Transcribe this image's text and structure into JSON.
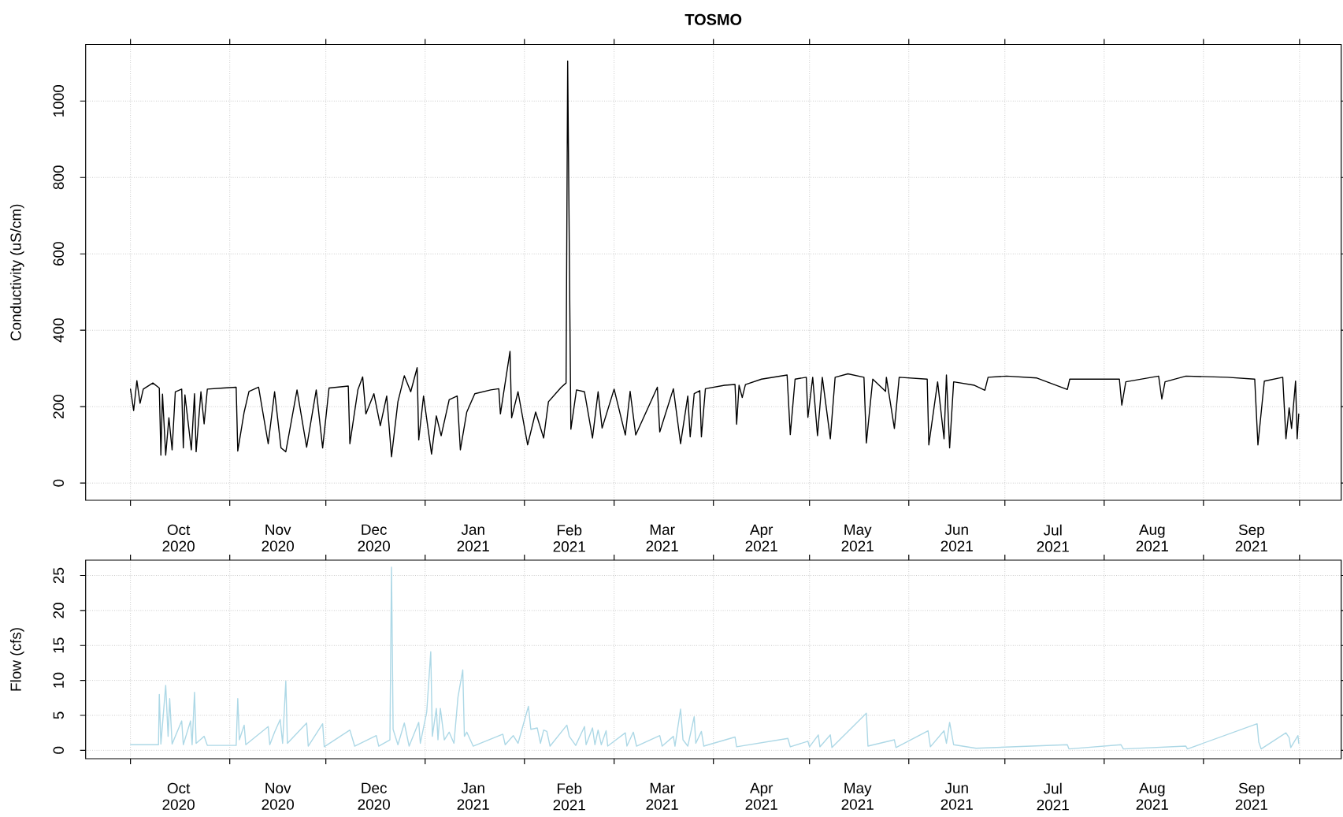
{
  "chart_data": [
    {
      "type": "line",
      "title": "TOSMO",
      "ylabel": "Conductivity (uS/cm)",
      "grid": true,
      "xlim": [
        "2020-09-17",
        "2021-10-14"
      ],
      "ylim": [
        -45,
        1148
      ],
      "yticks": [
        0,
        200,
        400,
        600,
        800,
        1000
      ],
      "xticks": [
        {
          "value": "2020-10-01",
          "label": null
        },
        {
          "value": "2020-11-01",
          "label": null
        },
        {
          "value": "2020-12-01",
          "label": null
        },
        {
          "value": "2021-01-01",
          "label": null
        },
        {
          "value": "2021-02-01",
          "label": null
        },
        {
          "value": "2021-03-01",
          "label": null
        },
        {
          "value": "2021-04-01",
          "label": null
        },
        {
          "value": "2021-05-01",
          "label": null
        },
        {
          "value": "2021-06-01",
          "label": null
        },
        {
          "value": "2021-07-01",
          "label": null
        },
        {
          "value": "2021-08-01",
          "label": null
        },
        {
          "value": "2021-09-01",
          "label": null
        },
        {
          "value": "2021-10-01",
          "label": null
        },
        {
          "value": "2020-10-16",
          "label": "Oct 2020"
        },
        {
          "value": "2020-11-16",
          "label": "Nov 2020"
        },
        {
          "value": "2020-12-16",
          "label": "Dec 2020"
        },
        {
          "value": "2021-01-16",
          "label": "Jan 2021"
        },
        {
          "value": "2021-02-15",
          "label": "Feb 2021"
        },
        {
          "value": "2021-03-16",
          "label": "Mar 2021"
        },
        {
          "value": "2021-04-16",
          "label": "Apr 2021"
        },
        {
          "value": "2021-05-16",
          "label": "May 2021"
        },
        {
          "value": "2021-06-16",
          "label": "Jun 2021"
        },
        {
          "value": "2021-07-16",
          "label": "Jul 2021"
        },
        {
          "value": "2021-08-16",
          "label": "Aug 2021"
        },
        {
          "value": "2021-09-16",
          "label": "Sep 2021"
        }
      ],
      "series": [
        {
          "color": "#000000",
          "x": [
            "2020-10-01",
            "2020-10-02",
            "2020-10-03",
            "2020-10-04",
            "2020-10-05",
            "2020-10-08",
            "2020-10-10",
            "2020-10-10T12:00",
            "2020-10-11",
            "2020-10-12",
            "2020-10-13",
            "2020-10-14",
            "2020-10-15",
            "2020-10-17",
            "2020-10-17T12:00",
            "2020-10-18",
            "2020-10-20",
            "2020-10-21",
            "2020-10-21T12:00",
            "2020-10-23",
            "2020-10-24",
            "2020-10-25",
            "2020-10-30",
            "2020-11-03",
            "2020-11-03T12:00",
            "2020-11-05T12:00",
            "2020-11-07",
            "2020-11-10",
            "2020-11-13",
            "2020-11-15",
            "2020-11-17",
            "2020-11-18T12:00",
            "2020-11-22",
            "2020-11-25",
            "2020-11-28",
            "2020-11-30",
            "2020-12-02",
            "2020-12-08",
            "2020-12-08T12:00",
            "2020-12-11",
            "2020-12-12T12:00",
            "2020-12-13T12:00",
            "2020-12-16",
            "2020-12-18",
            "2020-12-20",
            "2020-12-21T12:00",
            "2020-12-23T12:00",
            "2020-12-25T12:00",
            "2020-12-27T12:00",
            "2020-12-29T12:00",
            "2020-12-30",
            "2020-12-31T12:00",
            "2021-01-03",
            "2021-01-04T12:00",
            "2021-01-06",
            "2021-01-08T12:00",
            "2021-01-11",
            "2021-01-12",
            "2021-01-14",
            "2021-01-16T12:00",
            "2021-01-21T12:00",
            "2021-01-24",
            "2021-01-24T12:00",
            "2021-01-27T12:00",
            "2021-01-28",
            "2021-01-30",
            "2021-02-02",
            "2021-02-04T12:00",
            "2021-02-07",
            "2021-02-08T12:00",
            "2021-02-12T12:00",
            "2021-02-14",
            "2021-02-14T12:00",
            "2021-02-15T12:00",
            "2021-02-17T06:00",
            "2021-02-19T18:00",
            "2021-02-22T06:00",
            "2021-02-24",
            "2021-02-25T06:00",
            "2021-03-01",
            "2021-03-04T12:00",
            "2021-03-06",
            "2021-03-07T18:00",
            "2021-03-14T12:00",
            "2021-03-15T06:00",
            "2021-03-19T12:00",
            "2021-03-21T18:00",
            "2021-03-24",
            "2021-03-24T18:00",
            "2021-03-26",
            "2021-03-27T18:00",
            "2021-03-28T06:00",
            "2021-03-29T12:00",
            "2021-04-04T12:00",
            "2021-04-07T18:00",
            "2021-04-08T06:00",
            "2021-04-09",
            "2021-04-10",
            "2021-04-11",
            "2021-04-16",
            "2021-04-24",
            "2021-04-25",
            "2021-04-26T12:00",
            "2021-04-30",
            "2021-04-30T12:00",
            "2021-05-02",
            "2021-05-03T12:00",
            "2021-05-05",
            "2021-05-07T12:00",
            "2021-05-09",
            "2021-05-13",
            "2021-05-18",
            "2021-05-18T18:00",
            "2021-05-20T18:00",
            "2021-05-24T18:00",
            "2021-05-25",
            "2021-05-27T12:00",
            "2021-05-29",
            "2021-06-06T18:00",
            "2021-06-07T06:00",
            "2021-06-10",
            "2021-06-12",
            "2021-06-12T18:00",
            "2021-06-13T18:00",
            "2021-06-15",
            "2021-06-21T12:00",
            "2021-06-24T18:00",
            "2021-06-25T18:00",
            "2021-07-01T12:00",
            "2021-07-11",
            "2021-07-20T12:00",
            "2021-07-21T06:00",
            "2021-08-05T18:00",
            "2021-08-06T12:00",
            "2021-08-07T18:00",
            "2021-08-18",
            "2021-08-19",
            "2021-08-20",
            "2021-08-26T12:00",
            "2021-09-08T12:00",
            "2021-09-17",
            "2021-09-18",
            "2021-09-20",
            "2021-09-25T18:00",
            "2021-09-26T18:00",
            "2021-09-27T18:00",
            "2021-09-28T12:00",
            "2021-09-29T18:00",
            "2021-09-30T06:00",
            "2021-09-30T18:00"
          ],
          "values": [
            246,
            190,
            268,
            209,
            246,
            262,
            249,
            73,
            233,
            73,
            171,
            87,
            239,
            246,
            92,
            231,
            87,
            234,
            82,
            239,
            155,
            246,
            249,
            251,
            84,
            186,
            240,
            251,
            103,
            239,
            92,
            82,
            244,
            94,
            244,
            92,
            249,
            254,
            103,
            244,
            278,
            181,
            234,
            150,
            228,
            69,
            213,
            281,
            239,
            302,
            113,
            228,
            76,
            176,
            124,
            218,
            228,
            87,
            186,
            234,
            244,
            247,
            181,
            345,
            171,
            239,
            100,
            186,
            118,
            213,
            251,
            262,
            1105,
            141,
            244,
            239,
            118,
            239,
            144,
            246,
            126,
            240,
            126,
            251,
            134,
            247,
            103,
            228,
            121,
            234,
            242,
            121,
            247,
            256,
            258,
            154,
            256,
            224,
            258,
            272,
            283,
            127,
            272,
            277,
            172,
            277,
            124,
            277,
            116,
            277,
            286,
            277,
            105,
            272,
            240,
            277,
            143,
            277,
            272,
            100,
            265,
            116,
            283,
            92,
            265,
            256,
            243,
            277,
            280,
            275,
            245,
            272,
            272,
            204,
            265,
            280,
            220,
            265,
            280,
            277,
            272,
            100,
            267,
            277,
            116,
            197,
            143,
            267,
            116,
            181
          ]
        }
      ]
    },
    {
      "type": "line",
      "ylabel": "Flow (cfs)",
      "grid": true,
      "xlim": [
        "2020-09-17",
        "2021-10-14"
      ],
      "ylim": [
        -1.2,
        27.2
      ],
      "yticks": [
        0,
        5,
        10,
        15,
        20,
        25
      ],
      "xticks": [
        {
          "value": "2020-10-01",
          "label": null
        },
        {
          "value": "2020-11-01",
          "label": null
        },
        {
          "value": "2020-12-01",
          "label": null
        },
        {
          "value": "2021-01-01",
          "label": null
        },
        {
          "value": "2021-02-01",
          "label": null
        },
        {
          "value": "2021-03-01",
          "label": null
        },
        {
          "value": "2021-04-01",
          "label": null
        },
        {
          "value": "2021-05-01",
          "label": null
        },
        {
          "value": "2021-06-01",
          "label": null
        },
        {
          "value": "2021-07-01",
          "label": null
        },
        {
          "value": "2021-08-01",
          "label": null
        },
        {
          "value": "2021-09-01",
          "label": null
        },
        {
          "value": "2021-10-01",
          "label": null
        },
        {
          "value": "2020-10-16",
          "label": "Oct 2020"
        },
        {
          "value": "2020-11-16",
          "label": "Nov 2020"
        },
        {
          "value": "2020-12-16",
          "label": "Dec 2020"
        },
        {
          "value": "2021-01-16",
          "label": "Jan 2021"
        },
        {
          "value": "2021-02-15",
          "label": "Feb 2021"
        },
        {
          "value": "2021-03-16",
          "label": "Mar 2021"
        },
        {
          "value": "2021-04-16",
          "label": "Apr 2021"
        },
        {
          "value": "2021-05-16",
          "label": "May 2021"
        },
        {
          "value": "2021-06-16",
          "label": "Jun 2021"
        },
        {
          "value": "2021-07-16",
          "label": "Jul 2021"
        },
        {
          "value": "2021-08-16",
          "label": "Aug 2021"
        },
        {
          "value": "2021-09-16",
          "label": "Sep 2021"
        }
      ],
      "series": [
        {
          "color": "#add8e6",
          "x": [
            "2020-10-01",
            "2020-10-09T18:00",
            "2020-10-10",
            "2020-10-10T12:00",
            "2020-10-12",
            "2020-10-12T18:00",
            "2020-10-13T06:00",
            "2020-10-14",
            "2020-10-17",
            "2020-10-17T12:00",
            "2020-10-19T18:00",
            "2020-10-20T06:00",
            "2020-10-21",
            "2020-10-21T12:00",
            "2020-10-24",
            "2020-10-25",
            "2020-11-03",
            "2020-11-03T12:00",
            "2020-11-04",
            "2020-11-05T12:00",
            "2020-11-06",
            "2020-11-13",
            "2020-11-13T12:00",
            "2020-11-15",
            "2020-11-16T18:00",
            "2020-11-17T12:00",
            "2020-11-18T12:00",
            "2020-11-19",
            "2020-11-25",
            "2020-11-25T12:00",
            "2020-11-30",
            "2020-11-30T12:00",
            "2020-12-08T12:00",
            "2020-12-10",
            "2020-12-16T18:00",
            "2020-12-17T12:00",
            "2020-12-21",
            "2020-12-21T12:00",
            "2020-12-22",
            "2020-12-23T12:00",
            "2020-12-25T12:00",
            "2020-12-27",
            "2020-12-30",
            "2020-12-30T12:00",
            "2021-01-01T12:00",
            "2021-01-02T18:00",
            "2021-01-03T06:00",
            "2021-01-04T12:00",
            "2021-01-05",
            "2021-01-05T18:00",
            "2021-01-07",
            "2021-01-08T12:00",
            "2021-01-10",
            "2021-01-11T06:00",
            "2021-01-12T18:00",
            "2021-01-13T06:00",
            "2021-01-14",
            "2021-01-16",
            "2021-01-25T06:00",
            "2021-01-26",
            "2021-01-28T12:00",
            "2021-01-30",
            "2021-02-02T06:00",
            "2021-02-03",
            "2021-02-05",
            "2021-02-06",
            "2021-02-07",
            "2021-02-08",
            "2021-02-09",
            "2021-02-14T06:00",
            "2021-02-15",
            "2021-02-17",
            "2021-02-19T18:00",
            "2021-02-20T06:00",
            "2021-02-22T06:00",
            "2021-02-23",
            "2021-02-24",
            "2021-02-25",
            "2021-02-26T12:00",
            "2021-02-27",
            "2021-03-04T12:00",
            "2021-03-05",
            "2021-03-07",
            "2021-03-08",
            "2021-03-15T06:00",
            "2021-03-16",
            "2021-03-19T12:00",
            "2021-03-20",
            "2021-03-21T18:00",
            "2021-03-22T12:00",
            "2021-03-24",
            "2021-03-26",
            "2021-03-26T12:00",
            "2021-03-28T06:00",
            "2021-03-29",
            "2021-04-07T18:00",
            "2021-04-08T06:00",
            "2021-04-24T06:00",
            "2021-04-25",
            "2021-04-30T12:00",
            "2021-05-01",
            "2021-05-03T18:00",
            "2021-05-04T06:00",
            "2021-05-07T12:00",
            "2021-05-08",
            "2021-05-18T18:00",
            "2021-05-19T06:00",
            "2021-05-27T12:00",
            "2021-05-28",
            "2021-06-07",
            "2021-06-07T18:00",
            "2021-06-12",
            "2021-06-12T18:00",
            "2021-06-13T18:00",
            "2021-06-15",
            "2021-06-22",
            "2021-07-20T12:00",
            "2021-07-21",
            "2021-08-06T06:00",
            "2021-08-07",
            "2021-08-26T12:00",
            "2021-08-27",
            "2021-09-17T18:00",
            "2021-09-18T06:00",
            "2021-09-19",
            "2021-09-26T18:00",
            "2021-09-27T18:00",
            "2021-09-28T06:00",
            "2021-09-30T12:00",
            "2021-09-30T18:00"
          ],
          "values": [
            0.8,
            0.8,
            8.0,
            0.9,
            9.3,
            2.0,
            7.4,
            0.9,
            4.2,
            0.8,
            4.2,
            0.8,
            8.3,
            1.0,
            2.0,
            0.7,
            0.7,
            7.4,
            1.5,
            3.6,
            0.8,
            3.4,
            0.8,
            2.6,
            4.4,
            1.0,
            9.9,
            1.0,
            3.9,
            0.6,
            3.8,
            0.5,
            2.9,
            0.6,
            2.1,
            0.6,
            1.5,
            26.2,
            3.0,
            0.8,
            3.9,
            0.6,
            4.0,
            1.0,
            5.5,
            14.1,
            2.0,
            6.0,
            1.5,
            6.0,
            1.5,
            2.6,
            1.0,
            7.6,
            11.5,
            2.0,
            2.6,
            0.6,
            2.3,
            0.8,
            2.1,
            1.0,
            6.3,
            3.0,
            3.2,
            1.0,
            2.9,
            2.7,
            0.6,
            3.6,
            2.0,
            0.7,
            3.4,
            0.8,
            3.2,
            0.8,
            2.9,
            0.8,
            2.8,
            0.6,
            2.5,
            0.6,
            2.6,
            0.6,
            2.1,
            0.6,
            2.0,
            0.6,
            5.9,
            1.5,
            0.6,
            4.8,
            1.0,
            2.7,
            0.6,
            1.9,
            0.5,
            1.7,
            0.5,
            1.3,
            0.5,
            2.2,
            0.5,
            2.2,
            0.4,
            5.3,
            0.6,
            1.5,
            0.4,
            2.8,
            0.5,
            2.8,
            1.0,
            4.0,
            0.8,
            0.3,
            0.8,
            0.2,
            0.8,
            0.2,
            0.6,
            0.2,
            3.8,
            1.2,
            0.2,
            2.5,
            1.8,
            0.4,
            2.1,
            1.0
          ]
        }
      ]
    }
  ]
}
